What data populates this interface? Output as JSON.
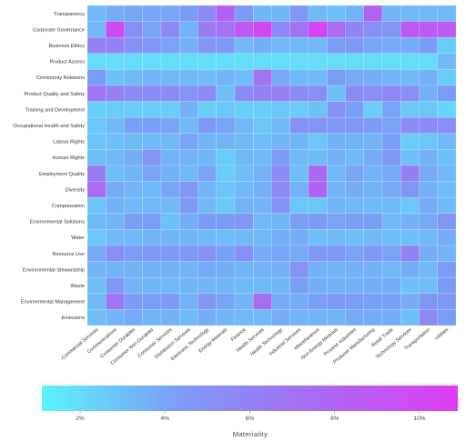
{
  "chart_data": {
    "type": "heatmap",
    "rows": [
      "Transparency",
      "Corporate Governance",
      "Business Ethics",
      "Product Access",
      "Community Relations",
      "Product Quality and Safety",
      "Training and Development",
      "Occupational Health and Safety",
      "Labour Rights",
      "Human Rights",
      "Employment Quality",
      "Diversity",
      "Compensation",
      "Environmental Solutions",
      "Water",
      "Resource Use",
      "Environmental Stewardship",
      "Waste",
      "Environmental Management",
      "Emissions"
    ],
    "columns": [
      "Commercial Services",
      "Communications",
      "Consumer Durables",
      "Consumer Non-Durables",
      "Consumer Services",
      "Distribution Services",
      "Electronic Technology",
      "Energy Minerals",
      "Finance",
      "Health Services",
      "Health Technology",
      "Industrial Services",
      "Miscellaneous",
      "Non-Energy Minerals",
      "Process Industries",
      "Producer Manufacturing",
      "Retail Trade",
      "Technology Services",
      "Transportation",
      "Utilities"
    ],
    "values": [
      [
        3.3,
        3.7,
        4.0,
        4.0,
        4.0,
        4.4,
        5.6,
        8.2,
        4.4,
        3.4,
        3.4,
        4.7,
        3.2,
        3.0,
        3.5,
        8.0,
        3.4,
        3.2,
        3.2,
        3.2
      ],
      [
        3.3,
        9.8,
        5.3,
        4.0,
        5.7,
        3.5,
        6.5,
        7.1,
        8.9,
        10.2,
        5.5,
        7.0,
        10.3,
        7.5,
        5.9,
        5.3,
        4.8,
        9.0,
        8.8,
        8.8
      ],
      [
        6.2,
        6.0,
        5.0,
        4.7,
        4.1,
        3.6,
        4.7,
        4.6,
        3.2,
        3.7,
        3.3,
        3.3,
        3.3,
        4.3,
        4.7,
        4.0,
        3.8,
        3.8,
        4.4,
        2.6
      ],
      [
        2.0,
        2.0,
        2.0,
        2.0,
        2.0,
        2.0,
        2.0,
        2.0,
        2.0,
        2.0,
        2.0,
        2.0,
        2.0,
        2.0,
        2.0,
        2.0,
        2.0,
        2.0,
        2.0,
        3.2
      ],
      [
        4.5,
        3.0,
        3.2,
        3.4,
        3.3,
        3.2,
        3.1,
        3.5,
        3.1,
        7.0,
        3.9,
        3.2,
        3.3,
        4.3,
        3.9,
        3.7,
        3.4,
        3.3,
        3.6,
        2.6
      ],
      [
        6.8,
        6.2,
        5.4,
        5.4,
        5.5,
        4.9,
        5.4,
        3.0,
        5.4,
        6.0,
        6.2,
        5.5,
        5.3,
        3.0,
        5.4,
        5.3,
        5.7,
        5.3,
        3.6,
        4.3
      ],
      [
        2.5,
        2.6,
        2.5,
        2.5,
        2.5,
        3.6,
        2.5,
        2.8,
        2.5,
        2.5,
        2.8,
        2.6,
        3.0,
        5.1,
        4.3,
        2.5,
        4.1,
        2.7,
        2.8,
        2.2
      ],
      [
        2.8,
        3.3,
        4.2,
        4.2,
        4.0,
        3.3,
        4.6,
        4.1,
        3.3,
        2.8,
        3.2,
        5.1,
        4.9,
        4.7,
        4.6,
        4.4,
        4.1,
        5.5,
        5.5,
        5.3
      ],
      [
        2.9,
        3.0,
        3.2,
        3.2,
        3.3,
        4.0,
        3.4,
        3.5,
        3.2,
        3.1,
        3.4,
        3.4,
        2.8,
        3.6,
        3.5,
        3.5,
        4.3,
        2.6,
        2.8,
        3.3
      ],
      [
        3.1,
        3.3,
        3.7,
        4.9,
        3.5,
        3.5,
        3.4,
        2.6,
        3.2,
        3.2,
        4.5,
        3.3,
        3.2,
        3.6,
        3.2,
        3.8,
        4.6,
        3.0,
        3.6,
        3.0
      ],
      [
        6.6,
        3.1,
        3.4,
        4.0,
        3.6,
        3.2,
        4.0,
        2.6,
        3.1,
        3.5,
        5.5,
        3.1,
        7.8,
        3.2,
        4.0,
        3.5,
        3.8,
        6.3,
        3.8,
        3.3
      ],
      [
        7.5,
        3.8,
        3.4,
        3.2,
        4.0,
        4.7,
        3.4,
        2.9,
        3.2,
        3.6,
        5.6,
        3.5,
        8.2,
        3.4,
        3.7,
        3.5,
        3.8,
        4.8,
        3.6,
        3.1
      ],
      [
        2.9,
        3.6,
        3.3,
        3.3,
        3.3,
        4.5,
        3.3,
        2.7,
        3.5,
        3.4,
        5.0,
        2.8,
        2.8,
        3.5,
        3.3,
        3.2,
        3.2,
        2.8,
        3.8,
        3.2
      ],
      [
        3.3,
        3.4,
        4.3,
        4.3,
        3.0,
        3.7,
        4.4,
        4.4,
        4.7,
        3.3,
        3.4,
        4.3,
        4.4,
        4.1,
        4.3,
        4.3,
        3.3,
        3.6,
        3.9,
        4.8
      ],
      [
        2.8,
        3.2,
        3.2,
        3.4,
        3.4,
        3.4,
        3.3,
        3.1,
        3.3,
        3.3,
        3.7,
        3.7,
        3.0,
        3.2,
        3.1,
        3.3,
        3.1,
        3.0,
        3.3,
        3.7
      ],
      [
        3.9,
        5.2,
        4.3,
        4.6,
        4.5,
        4.6,
        5.1,
        4.2,
        5.3,
        3.7,
        4.0,
        3.9,
        4.7,
        4.6,
        4.1,
        4.7,
        4.0,
        6.0,
        3.7,
        3.4
      ],
      [
        3.4,
        3.5,
        3.6,
        3.6,
        3.6,
        3.4,
        3.8,
        3.7,
        3.4,
        3.5,
        3.6,
        4.9,
        3.6,
        3.5,
        3.6,
        3.6,
        3.3,
        3.7,
        3.3,
        4.3
      ],
      [
        3.1,
        4.6,
        3.5,
        3.4,
        3.3,
        3.4,
        3.4,
        3.4,
        3.3,
        3.2,
        3.4,
        4.3,
        3.7,
        3.6,
        3.6,
        3.7,
        3.7,
        3.0,
        3.1,
        4.4
      ],
      [
        3.3,
        6.8,
        4.4,
        4.3,
        4.4,
        3.5,
        4.7,
        4.0,
        3.4,
        7.6,
        3.8,
        3.7,
        4.2,
        4.5,
        4.3,
        4.2,
        4.2,
        3.7,
        4.8,
        4.6
      ],
      [
        3.1,
        3.4,
        3.8,
        3.4,
        3.6,
        3.2,
        3.7,
        3.4,
        3.3,
        3.3,
        3.7,
        3.5,
        3.5,
        3.4,
        3.8,
        3.8,
        3.8,
        3.0,
        5.7,
        4.3
      ]
    ],
    "colorbar": {
      "min": 1.1,
      "max": 10.9,
      "ticks": [
        2,
        4,
        6,
        8,
        10
      ],
      "tick_labels": [
        "2%",
        "4%",
        "6%",
        "8%",
        "10%"
      ],
      "title": "Materiality",
      "colors": [
        "#5cf4fa",
        "#7b9cf6",
        "#a96af2",
        "#df3df2"
      ]
    }
  }
}
